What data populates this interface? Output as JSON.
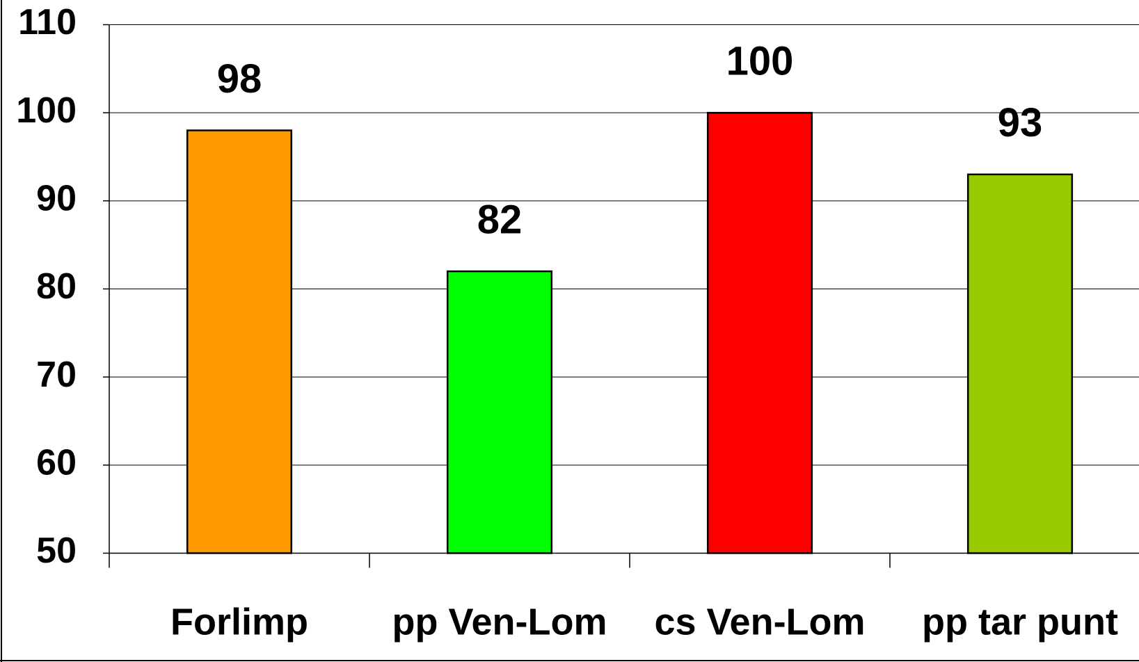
{
  "chart_data": {
    "type": "bar",
    "categories": [
      "Forlimp",
      "pp Ven-Lom",
      "cs Ven-Lom",
      "pp tar punt"
    ],
    "values": [
      98,
      82,
      100,
      93
    ],
    "colors": [
      "#ff9900",
      "#00ff00",
      "#ff0000",
      "#99cc00"
    ],
    "ylim": [
      50,
      110
    ],
    "yticks": [
      50,
      60,
      70,
      80,
      90,
      100,
      110
    ],
    "grid": true
  }
}
